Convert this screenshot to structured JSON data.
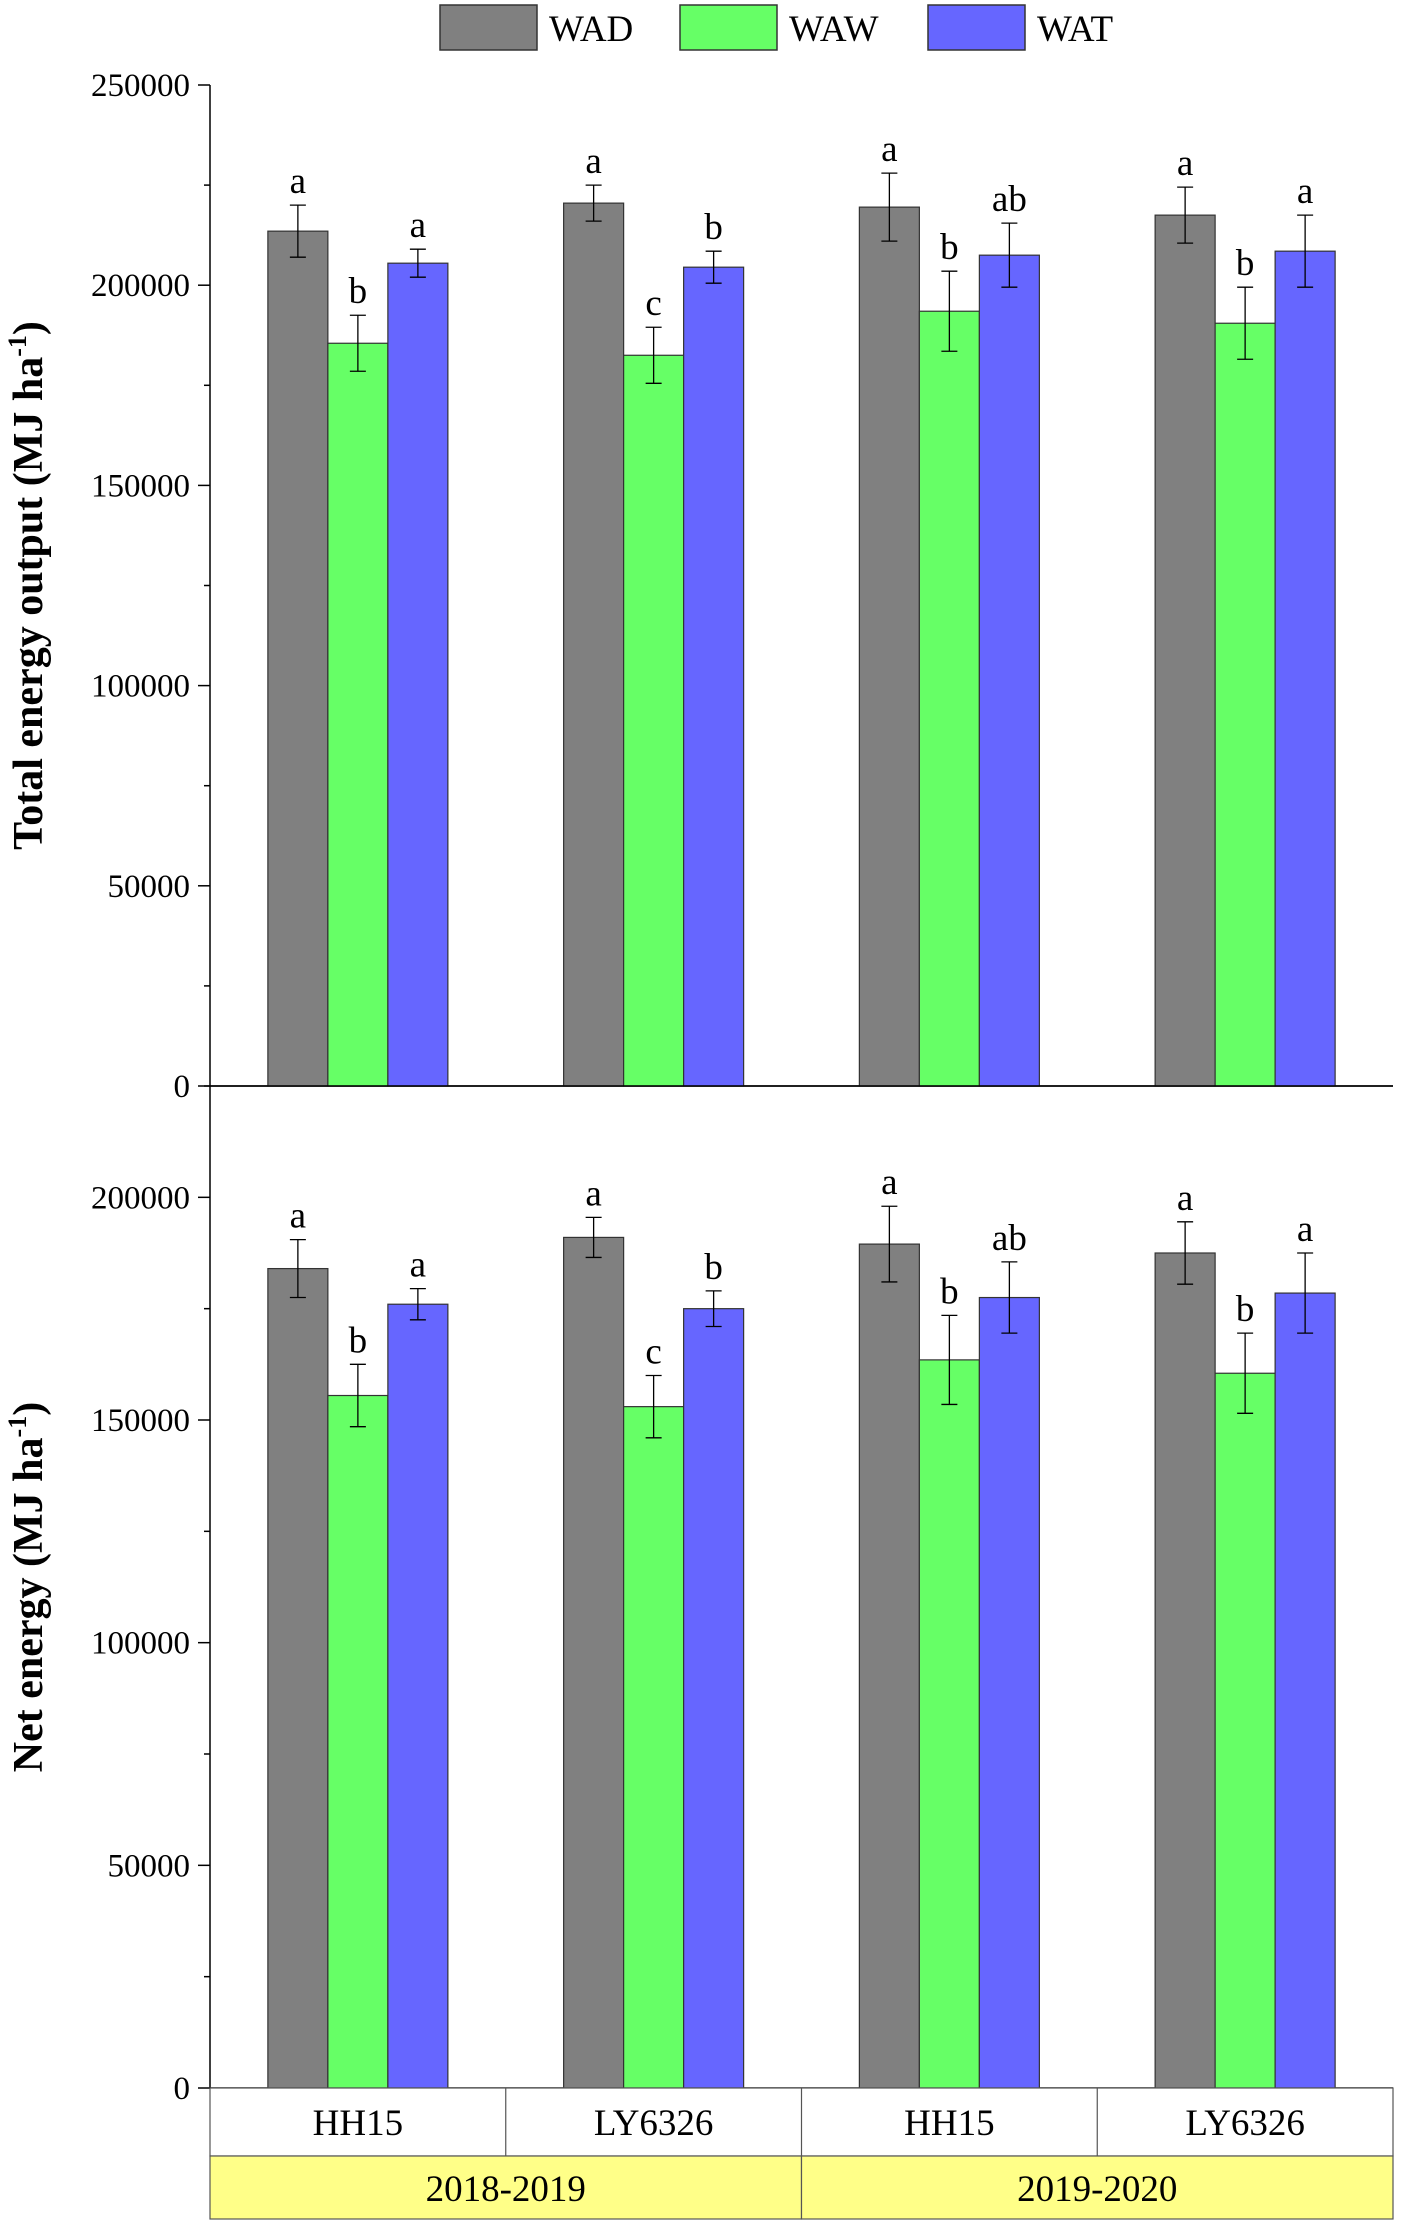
{
  "chart_data": {
    "type": "bar",
    "legend": {
      "position": "top-center",
      "items": [
        {
          "name": "WAD",
          "color": "#808080"
        },
        {
          "name": "WAW",
          "color": "#66ff66"
        },
        {
          "name": "WAT",
          "color": "#6666ff"
        }
      ]
    },
    "categories": [
      "HH15",
      "LY6326",
      "HH15",
      "LY6326"
    ],
    "groups": [
      {
        "label": "2018-2019",
        "color": "#ffff88"
      },
      {
        "label": "2019-2020",
        "color": "#ffff88"
      }
    ],
    "panels": [
      {
        "ylabel_main": "Total energy output (MJ ha",
        "ylabel_sup": "-1",
        "ylabel_end": ")",
        "ylim": [
          0,
          250000
        ],
        "yticks": [
          "0",
          "50000",
          "100000",
          "150000",
          "200000",
          "250000"
        ],
        "series": [
          {
            "name": "WAD",
            "values": [
              213500,
              220500,
              219500,
              217500
            ],
            "errors": [
              6500,
              4500,
              8500,
              7000
            ],
            "letters": [
              "a",
              "a",
              "a",
              "a"
            ]
          },
          {
            "name": "WAW",
            "values": [
              185500,
              182500,
              193500,
              190500
            ],
            "errors": [
              7000,
              7000,
              10000,
              9000
            ],
            "letters": [
              "b",
              "c",
              "b",
              "b"
            ]
          },
          {
            "name": "WAT",
            "values": [
              205500,
              204500,
              207500,
              208500
            ],
            "errors": [
              3500,
              4000,
              8000,
              9000
            ],
            "letters": [
              "a",
              "b",
              "ab",
              "a"
            ]
          }
        ]
      },
      {
        "ylabel_main": "Net energy (MJ ha",
        "ylabel_sup": "-1",
        "ylabel_end": ")",
        "ylim": [
          0,
          225000
        ],
        "yticks": [
          "0",
          "50000",
          "100000",
          "150000",
          "200000"
        ],
        "series": [
          {
            "name": "WAD",
            "values": [
              184000,
              191000,
              189500,
              187500
            ],
            "errors": [
              6500,
              4500,
              8500,
              7000
            ],
            "letters": [
              "a",
              "a",
              "a",
              "a"
            ]
          },
          {
            "name": "WAW",
            "values": [
              155500,
              153000,
              163500,
              160500
            ],
            "errors": [
              7000,
              7000,
              10000,
              9000
            ],
            "letters": [
              "b",
              "c",
              "b",
              "b"
            ]
          },
          {
            "name": "WAT",
            "values": [
              176000,
              175000,
              177500,
              178500
            ],
            "errors": [
              3500,
              4000,
              8000,
              9000
            ],
            "letters": [
              "a",
              "b",
              "ab",
              "a"
            ]
          }
        ]
      }
    ]
  }
}
